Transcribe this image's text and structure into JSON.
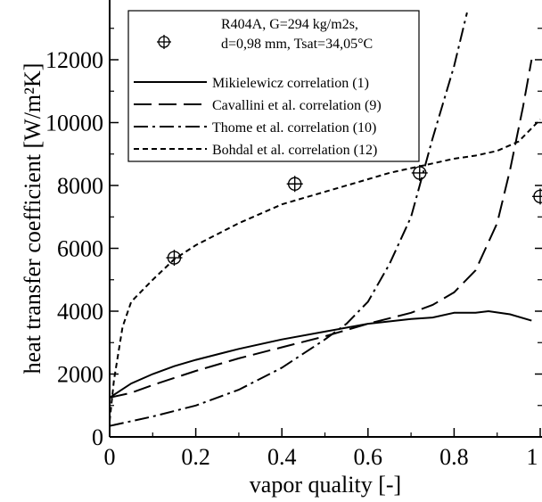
{
  "chart_data": {
    "type": "line",
    "xlabel": "vapor quality [-]",
    "ylabel": "heat transfer coefficient [W/m²K]",
    "xlim": [
      0,
      1
    ],
    "ylim": [
      0,
      13500
    ],
    "xticks": [
      0,
      0.2,
      0.4,
      0.6,
      0.8,
      1
    ],
    "xtick_labels": [
      "0",
      "0.2",
      "0.4",
      "0.6",
      "0.8",
      "1"
    ],
    "yticks": [
      0,
      2000,
      4000,
      6000,
      8000,
      10000,
      12000
    ],
    "ytick_labels": [
      "0",
      "2000",
      "4000",
      "6000",
      "8000",
      "10000",
      "12000"
    ],
    "grid": false,
    "legend_position": "top-right",
    "experimental": {
      "name_lines": [
        "R404A, G=294 kg/m2s,",
        "d=0,98 mm, Tsat=34,05°C"
      ],
      "x": [
        0.15,
        0.43,
        0.72,
        1.0
      ],
      "y": [
        5700,
        8050,
        8400,
        7650
      ]
    },
    "series": [
      {
        "name": "Mikielewicz correlation (1)",
        "style": "solid",
        "x": [
          0,
          0.05,
          0.1,
          0.15,
          0.2,
          0.3,
          0.4,
          0.5,
          0.6,
          0.7,
          0.75,
          0.8,
          0.85,
          0.88,
          0.93,
          0.98
        ],
        "y": [
          1250,
          1700,
          2000,
          2250,
          2450,
          2800,
          3100,
          3350,
          3600,
          3750,
          3800,
          3950,
          3950,
          4000,
          3900,
          3700
        ]
      },
      {
        "name": "Cavallini et al. correlation (9)",
        "style": "long-dash",
        "x": [
          0,
          0.05,
          0.1,
          0.2,
          0.3,
          0.4,
          0.5,
          0.6,
          0.7,
          0.75,
          0.8,
          0.85,
          0.9,
          0.93,
          0.96,
          0.98
        ],
        "y": [
          1250,
          1400,
          1650,
          2100,
          2500,
          2850,
          3200,
          3600,
          3950,
          4200,
          4600,
          5300,
          6800,
          8500,
          10500,
          12000
        ]
      },
      {
        "name": "Thome et al. correlation (10)",
        "style": "dash-dot",
        "x": [
          0,
          0.1,
          0.2,
          0.3,
          0.4,
          0.5,
          0.55,
          0.6,
          0.65,
          0.7,
          0.72,
          0.75,
          0.8,
          0.83
        ],
        "y": [
          350,
          650,
          1000,
          1500,
          2200,
          3100,
          3600,
          4300,
          5500,
          7000,
          8000,
          9500,
          11800,
          13500
        ]
      },
      {
        "name": "Bohdal et al. correlation (12)",
        "style": "short-dash",
        "x": [
          0,
          0.01,
          0.03,
          0.05,
          0.1,
          0.15,
          0.2,
          0.3,
          0.4,
          0.45,
          0.5,
          0.6,
          0.65,
          0.7,
          0.75,
          0.8,
          0.85,
          0.9,
          0.95,
          1.0
        ],
        "y": [
          500,
          1800,
          3500,
          4300,
          5000,
          5650,
          6100,
          6800,
          7400,
          7600,
          7800,
          8200,
          8400,
          8550,
          8700,
          8850,
          8950,
          9100,
          9400,
          10100
        ]
      }
    ]
  }
}
